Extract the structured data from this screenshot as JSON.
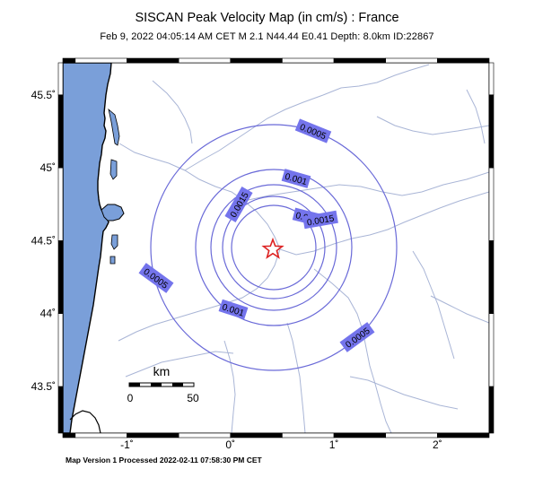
{
  "title": "SISCAN Peak Velocity Map (in cm/s) : France",
  "subtitle": "Feb  9, 2022 04:05:14 AM CET   M 2.1    N44.44 E0.41   Depth: 8.0km   ID:22867",
  "footer": "Map Version 1 Processed 2022-02-11 07:58:30 PM CET",
  "map": {
    "lon_range": [
      -1.62,
      2.5
    ],
    "lat_range": [
      43.18,
      45.72
    ],
    "lat_ticks": [
      {
        "value": 45.5,
        "label": "45.5˚"
      },
      {
        "value": 45.0,
        "label": "45˚"
      },
      {
        "value": 44.5,
        "label": "44.5˚"
      },
      {
        "value": 44.0,
        "label": "44˚"
      },
      {
        "value": 43.5,
        "label": "43.5˚"
      }
    ],
    "lon_ticks": [
      {
        "value": -1,
        "label": "-1˚"
      },
      {
        "value": 0,
        "label": "0˚"
      },
      {
        "value": 1,
        "label": "1˚"
      },
      {
        "value": 2,
        "label": "2˚"
      }
    ],
    "epicenter": {
      "lat": 44.44,
      "lon": 0.41,
      "symbol": "star-icon"
    },
    "contour_labels": [
      "0.0005",
      "0.001",
      "0.0015",
      "0.001",
      "0.0015",
      "0.0005",
      "0.001",
      "0.0005"
    ],
    "scale_bar": {
      "unit": "km",
      "min_label": "0",
      "max_label": "50"
    },
    "colors": {
      "sea": "#7a9fd9",
      "land": "#ffffff",
      "contour": "#6a6ad8",
      "label_box": "#7474ec",
      "rivers": "#a9b5d6",
      "star": "#dd2222"
    }
  }
}
